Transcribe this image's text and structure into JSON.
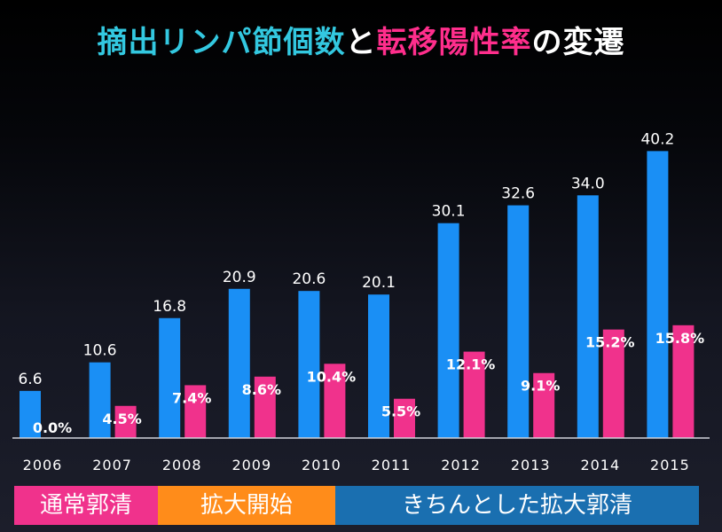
{
  "title": {
    "part1": "摘出リンパ節個数",
    "part2": "と",
    "part3": "転移陽性率",
    "part4": "の変遷"
  },
  "colors": {
    "count_bar": "#1a8ff5",
    "rate_bar": "#f0328c",
    "title_cyan": "#33c8e0",
    "title_pink": "#ff2e8c",
    "legend_normal": "#f0328c",
    "legend_start": "#ff8c1a",
    "legend_proper": "#1a6fb0"
  },
  "legend": [
    "通常郭清",
    "拡大開始",
    "きちんとした拡大郭清"
  ],
  "chart_data": {
    "type": "bar",
    "categories": [
      "2006",
      "2007",
      "2008",
      "2009",
      "2010",
      "2011",
      "2012",
      "2013",
      "2014",
      "2015"
    ],
    "series": [
      {
        "values": [
          6.6,
          10.6,
          16.8,
          20.9,
          20.6,
          20.1,
          30.1,
          32.6,
          34.0,
          40.2
        ],
        "labels": [
          "6.6",
          "10.6",
          "16.8",
          "20.9",
          "20.6",
          "20.1",
          "30.1",
          "32.6",
          "34.0",
          "40.2"
        ]
      },
      {
        "values": [
          0.0,
          4.5,
          7.4,
          8.6,
          10.4,
          5.5,
          12.1,
          9.1,
          15.2,
          15.8
        ],
        "labels": [
          "0.0%",
          "4.5%",
          "7.4%",
          "8.6%",
          "10.4%",
          "5.5%",
          "12.1%",
          "9.1%",
          "15.2%",
          "15.8%"
        ]
      }
    ],
    "ylim": [
      0,
      48
    ]
  }
}
